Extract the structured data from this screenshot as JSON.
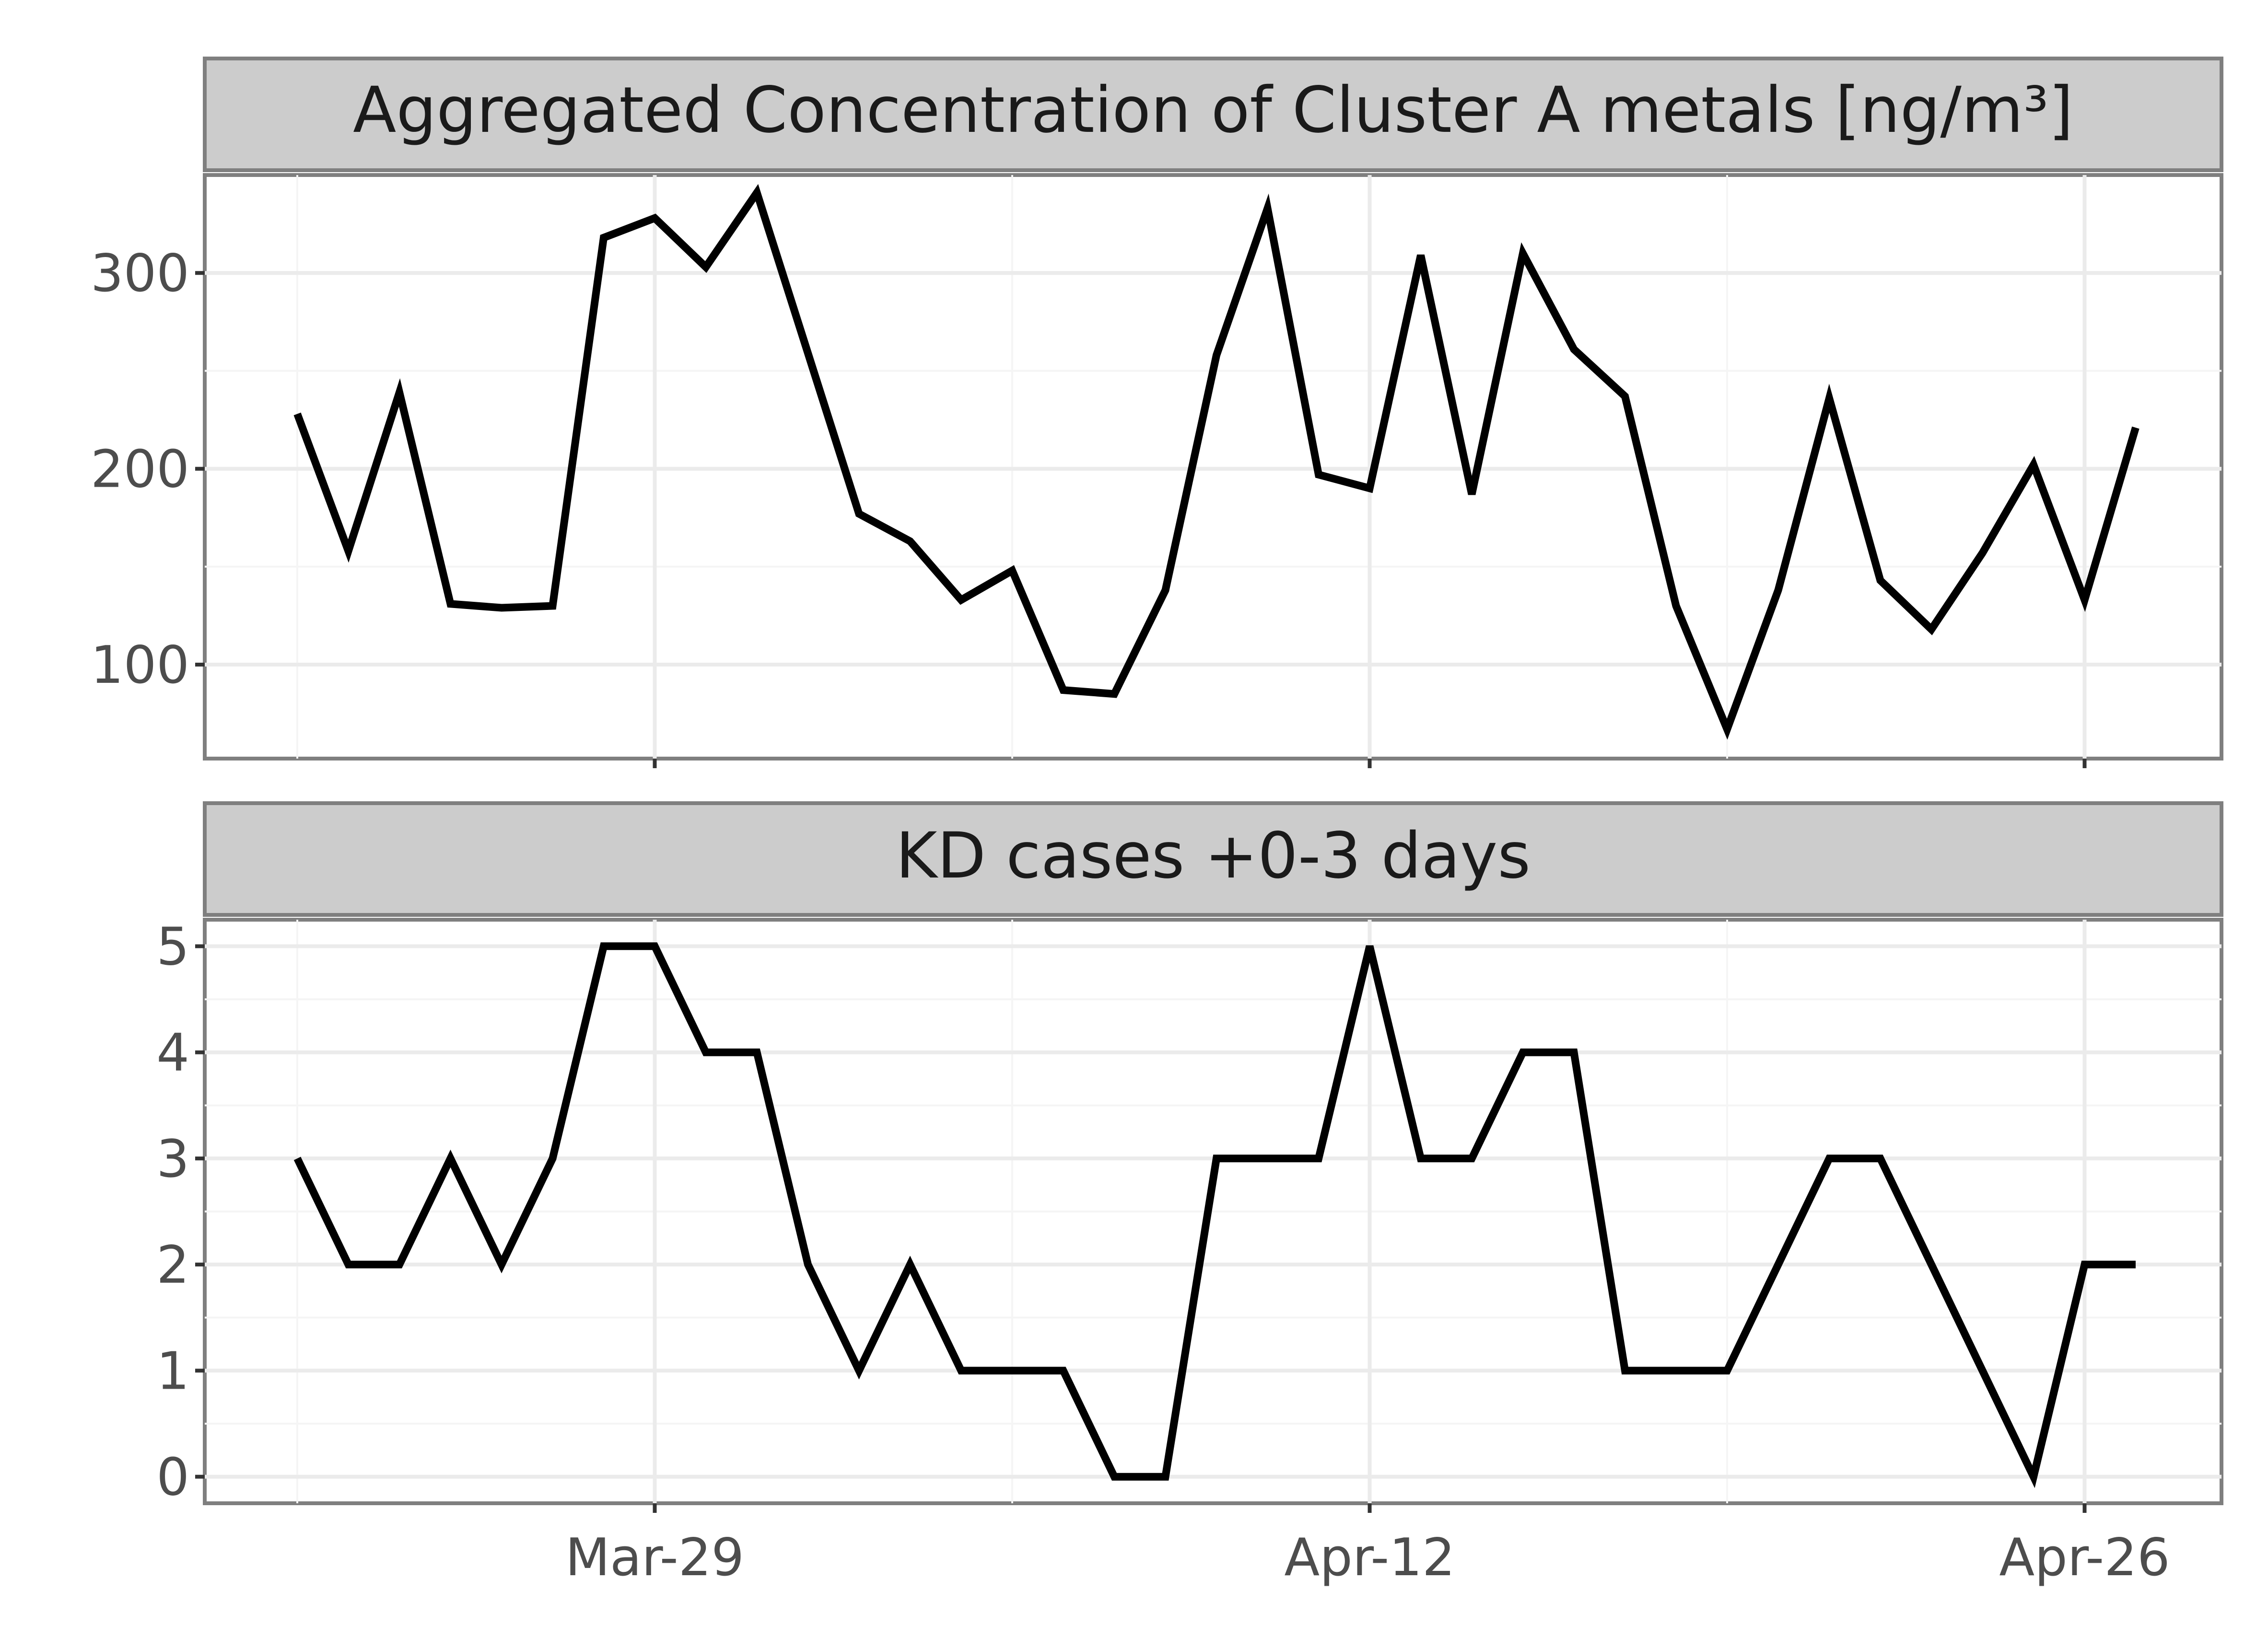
{
  "chart_data": {
    "type": "line",
    "x_axis": {
      "start_date": "2024-03-22",
      "tick_labels": [
        "Mar-29",
        "Apr-12",
        "Apr-26"
      ],
      "tick_dates": [
        "2024-03-29",
        "2024-04-12",
        "2024-04-26"
      ]
    },
    "panels": [
      {
        "title": "Aggregated Concentration of Cluster A metals [ng/m³]",
        "ylim": [
          52,
          350
        ],
        "yticks": [
          100,
          200,
          300
        ],
        "dates": [
          "2024-03-22",
          "2024-03-23",
          "2024-03-24",
          "2024-03-25",
          "2024-03-26",
          "2024-03-27",
          "2024-03-28",
          "2024-03-29",
          "2024-03-30",
          "2024-03-31",
          "2024-04-01",
          "2024-04-02",
          "2024-04-03",
          "2024-04-04",
          "2024-04-05",
          "2024-04-06",
          "2024-04-07",
          "2024-04-08",
          "2024-04-09",
          "2024-04-10",
          "2024-04-11",
          "2024-04-12",
          "2024-04-13",
          "2024-04-14",
          "2024-04-15",
          "2024-04-16",
          "2024-04-17",
          "2024-04-18",
          "2024-04-19",
          "2024-04-20",
          "2024-04-21",
          "2024-04-22",
          "2024-04-23",
          "2024-04-24",
          "2024-04-25",
          "2024-04-26",
          "2024-04-27"
        ],
        "values": [
          228,
          158,
          239,
          131,
          129,
          130,
          318,
          328,
          303,
          341,
          259,
          177,
          163,
          133,
          148,
          87,
          85,
          138,
          258,
          333,
          197,
          190,
          309,
          187,
          310,
          261,
          237,
          130,
          67,
          138,
          236,
          143,
          118,
          157,
          202,
          133,
          221
        ]
      },
      {
        "title": "KD cases +0-3 days",
        "ylim": [
          -0.25,
          5.25
        ],
        "yticks": [
          0,
          1,
          2,
          3,
          4,
          5
        ],
        "dates": [
          "2024-03-22",
          "2024-03-23",
          "2024-03-24",
          "2024-03-25",
          "2024-03-26",
          "2024-03-27",
          "2024-03-28",
          "2024-03-29",
          "2024-03-30",
          "2024-03-31",
          "2024-04-01",
          "2024-04-02",
          "2024-04-03",
          "2024-04-04",
          "2024-04-05",
          "2024-04-06",
          "2024-04-07",
          "2024-04-08",
          "2024-04-09",
          "2024-04-10",
          "2024-04-11",
          "2024-04-12",
          "2024-04-13",
          "2024-04-14",
          "2024-04-15",
          "2024-04-16",
          "2024-04-17",
          "2024-04-18",
          "2024-04-19",
          "2024-04-20",
          "2024-04-21",
          "2024-04-22",
          "2024-04-23",
          "2024-04-24",
          "2024-04-25",
          "2024-04-26",
          "2024-04-27"
        ],
        "values": [
          3,
          2,
          2,
          3,
          2,
          3,
          5,
          5,
          4,
          4,
          2,
          1,
          2,
          1,
          1,
          1,
          0,
          0,
          3,
          3,
          3,
          5,
          3,
          3,
          4,
          4,
          1,
          1,
          1,
          2,
          3,
          3,
          2,
          1,
          0,
          2,
          2
        ]
      }
    ],
    "line_color": "#000000",
    "grid": true,
    "legend": "none"
  }
}
